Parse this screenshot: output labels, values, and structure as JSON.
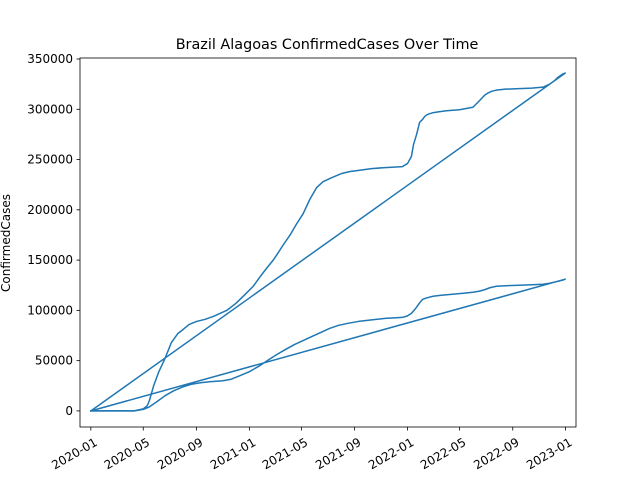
{
  "chart_data": {
    "type": "line",
    "title": "Brazil Alagoas ConfirmedCases Over Time",
    "xlabel": "",
    "ylabel": "ConfirmedCases",
    "x_ticks": [
      "2020-01",
      "2020-05",
      "2020-09",
      "2021-01",
      "2021-05",
      "2021-09",
      "2022-01",
      "2022-05",
      "2022-09",
      "2023-01"
    ],
    "y_ticks": [
      0,
      50000,
      100000,
      150000,
      200000,
      250000,
      300000,
      350000
    ],
    "x_range": [
      "2019-12-07",
      "2023-01-25"
    ],
    "ylim": [
      -16000,
      351000
    ],
    "grid": false,
    "legend": false,
    "line_color": "#1f77b4",
    "series": [
      {
        "x": [
          "2020-01-01",
          "2020-04-10",
          "2020-05-01",
          "2020-05-10",
          "2020-05-15",
          "2020-05-25",
          "2020-06-05",
          "2020-06-20",
          "2020-07-05",
          "2020-07-20",
          "2020-08-01",
          "2020-08-15",
          "2020-09-01",
          "2020-09-20",
          "2020-10-10",
          "2020-11-10",
          "2020-12-01",
          "2020-12-20",
          "2021-01-10",
          "2021-01-25",
          "2021-02-10",
          "2021-02-25",
          "2021-03-05",
          "2021-03-20",
          "2021-04-05",
          "2021-04-20",
          "2021-05-05",
          "2021-05-20",
          "2021-06-05",
          "2021-06-20",
          "2021-07-10",
          "2021-08-01",
          "2021-08-20",
          "2021-09-15",
          "2021-10-10",
          "2021-11-10",
          "2021-12-01",
          "2021-12-20",
          "2022-01-01",
          "2022-01-10",
          "2022-01-15",
          "2022-01-22",
          "2022-01-29",
          "2022-02-05",
          "2022-02-10",
          "2022-02-15",
          "2022-02-20",
          "2022-02-28",
          "2022-03-15",
          "2022-04-01",
          "2022-05-01",
          "2022-06-01",
          "2022-06-15",
          "2022-06-28",
          "2022-07-05",
          "2022-07-15",
          "2022-07-25",
          "2022-08-15",
          "2022-09-15",
          "2022-10-15",
          "2022-11-10",
          "2022-11-25",
          "2022-12-05",
          "2022-12-15",
          "2022-12-25",
          "2022-12-31",
          "2020-01-01"
        ],
        "values": [
          0,
          0,
          2000,
          5000,
          10000,
          25000,
          38000,
          52000,
          68000,
          77000,
          81000,
          86000,
          89000,
          91000,
          94000,
          100000,
          107000,
          115000,
          124000,
          133000,
          142000,
          150000,
          155000,
          165000,
          175000,
          186000,
          196000,
          210000,
          222000,
          228000,
          232000,
          236000,
          238000,
          239500,
          241000,
          242000,
          242500,
          243000,
          246000,
          253000,
          265000,
          275000,
          287000,
          290000,
          293000,
          294500,
          295500,
          296500,
          297500,
          298500,
          299500,
          302000,
          308000,
          314000,
          316000,
          318000,
          319000,
          320000,
          320500,
          321000,
          322000,
          325000,
          328000,
          332000,
          335000,
          336000,
          0
        ]
      },
      {
        "x": [
          "2020-01-01",
          "2020-04-10",
          "2020-05-01",
          "2020-05-15",
          "2020-06-01",
          "2020-06-20",
          "2020-07-10",
          "2020-08-01",
          "2020-08-20",
          "2020-09-10",
          "2020-10-01",
          "2020-11-01",
          "2020-11-20",
          "2020-12-10",
          "2021-01-01",
          "2021-01-25",
          "2021-02-15",
          "2021-03-05",
          "2021-03-25",
          "2021-04-15",
          "2021-05-05",
          "2021-05-25",
          "2021-06-15",
          "2021-07-05",
          "2021-07-25",
          "2021-08-15",
          "2021-09-10",
          "2021-10-10",
          "2021-11-10",
          "2021-12-01",
          "2021-12-20",
          "2022-01-01",
          "2022-01-10",
          "2022-01-20",
          "2022-01-30",
          "2022-02-05",
          "2022-02-15",
          "2022-03-01",
          "2022-03-20",
          "2022-04-15",
          "2022-05-10",
          "2022-06-01",
          "2022-06-15",
          "2022-06-28",
          "2022-07-10",
          "2022-07-25",
          "2022-08-15",
          "2022-09-15",
          "2022-10-15",
          "2022-11-10",
          "2022-11-25",
          "2022-12-10",
          "2022-12-25",
          "2022-12-31",
          "2020-01-01"
        ],
        "values": [
          0,
          0,
          1500,
          4000,
          9000,
          15000,
          20000,
          24000,
          26500,
          28000,
          29000,
          30000,
          31500,
          35000,
          39000,
          45000,
          51000,
          56000,
          61000,
          66000,
          70000,
          74000,
          78000,
          82000,
          85000,
          87000,
          89000,
          90500,
          92000,
          92500,
          93000,
          94500,
          97000,
          102000,
          108000,
          111000,
          112500,
          114000,
          115000,
          116000,
          117000,
          118000,
          119000,
          120500,
          122500,
          124000,
          124500,
          125000,
          125500,
          126000,
          127000,
          128500,
          130000,
          131000,
          0
        ]
      }
    ]
  }
}
